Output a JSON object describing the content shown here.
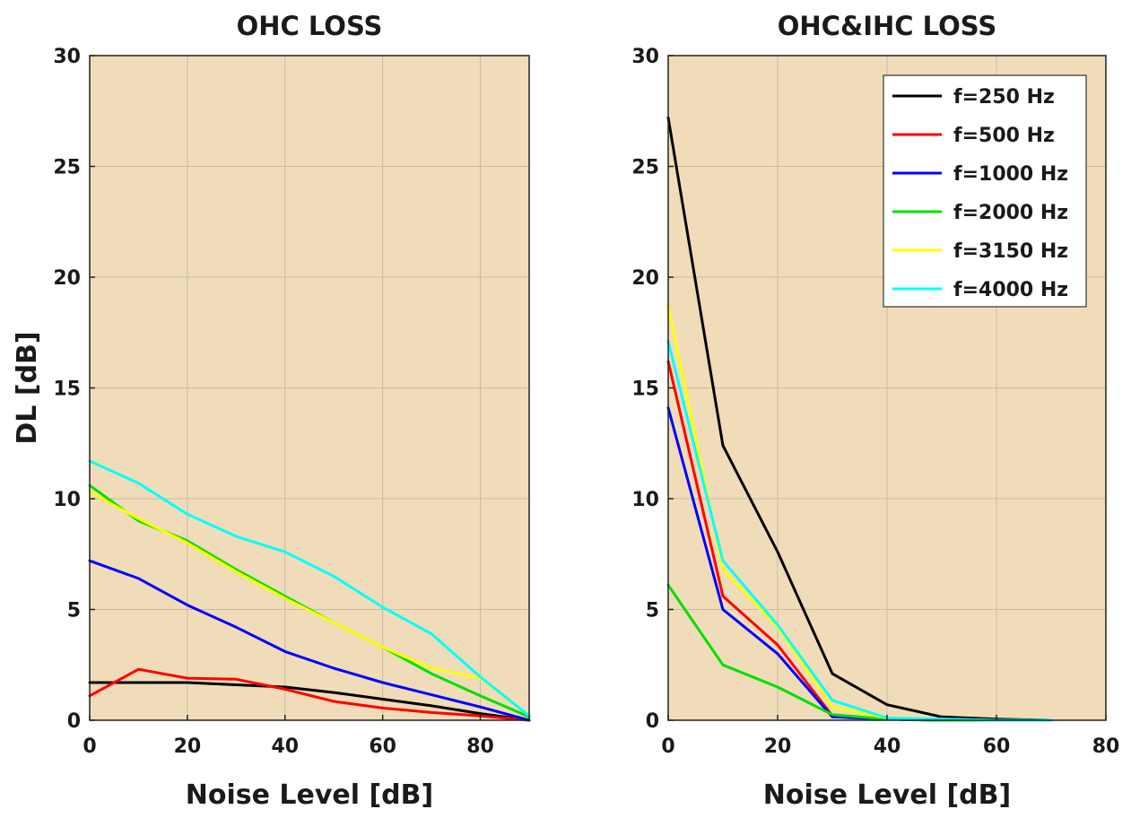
{
  "colors": {
    "plot_background": "#f0dcb8",
    "grid": "#c9bca4",
    "axis": "#222222",
    "series": {
      "f=250 Hz": "#000000",
      "f=500 Hz": "#ff0000",
      "f=1000 Hz": "#0000ff",
      "f=2000 Hz": "#00e000",
      "f=3150 Hz": "#ffff00",
      "f=4000 Hz": "#00ffff"
    }
  },
  "chart_data": [
    {
      "type": "line",
      "title": "OHC LOSS",
      "xlabel": "Noise Level [dB]",
      "ylabel": "DL [dB]",
      "xlim": [
        0,
        90
      ],
      "ylim": [
        0,
        30
      ],
      "xticks": [
        "0",
        "20",
        "40",
        "60",
        "80"
      ],
      "yticks": [
        "0",
        "5",
        "10",
        "15",
        "20",
        "25",
        "30"
      ],
      "grid": true,
      "legend": null,
      "x": [
        0,
        10,
        20,
        30,
        40,
        50,
        60,
        70,
        80,
        90
      ],
      "series": [
        {
          "name": "f=250 Hz",
          "values": [
            1.7,
            1.7,
            1.7,
            1.6,
            1.5,
            1.25,
            0.95,
            0.65,
            0.3,
            0.0
          ]
        },
        {
          "name": "f=500 Hz",
          "values": [
            1.1,
            2.3,
            1.9,
            1.85,
            1.4,
            0.85,
            0.55,
            0.35,
            0.2,
            0.0
          ]
        },
        {
          "name": "f=1000 Hz",
          "values": [
            7.2,
            6.4,
            5.2,
            4.2,
            3.1,
            2.35,
            1.7,
            1.15,
            0.6,
            0.0
          ]
        },
        {
          "name": "f=2000 Hz",
          "values": [
            10.6,
            9.0,
            8.1,
            6.8,
            5.6,
            4.4,
            3.3,
            2.1,
            1.1,
            0.15
          ]
        },
        {
          "name": "f=3150 Hz",
          "values": [
            10.3,
            9.1,
            8.0,
            6.7,
            5.5,
            4.4,
            3.3,
            2.35,
            1.9,
            0.2
          ]
        },
        {
          "name": "f=4000 Hz",
          "values": [
            11.7,
            10.7,
            9.3,
            8.3,
            7.6,
            6.5,
            5.1,
            3.9,
            1.95,
            0.2
          ]
        }
      ]
    },
    {
      "type": "line",
      "title": "OHC&IHC LOSS",
      "xlabel": "Noise Level [dB]",
      "ylabel": "",
      "xlim": [
        0,
        80
      ],
      "ylim": [
        0,
        30
      ],
      "xticks": [
        "0",
        "20",
        "40",
        "60",
        "80"
      ],
      "yticks": [
        "0",
        "5",
        "10",
        "15",
        "20",
        "25",
        "30"
      ],
      "grid": true,
      "legend": "top-right",
      "x": [
        0,
        10,
        20,
        30,
        40,
        50,
        60,
        70
      ],
      "series": [
        {
          "name": "f=250 Hz",
          "values": [
            27.2,
            12.4,
            7.6,
            2.1,
            0.7,
            0.15,
            0.05,
            0.0
          ]
        },
        {
          "name": "f=500 Hz",
          "values": [
            16.2,
            5.6,
            3.4,
            0.2,
            0.05,
            0.0,
            0.0,
            0.0
          ]
        },
        {
          "name": "f=1000 Hz",
          "values": [
            14.1,
            5.0,
            3.0,
            0.15,
            0.05,
            0.0,
            0.0,
            0.0
          ]
        },
        {
          "name": "f=2000 Hz",
          "values": [
            6.1,
            2.5,
            1.5,
            0.25,
            0.05,
            0.0,
            0.0,
            0.0
          ]
        },
        {
          "name": "f=3150 Hz",
          "values": [
            18.7,
            6.8,
            4.2,
            0.6,
            0.1,
            0.05,
            0.0,
            0.0
          ]
        },
        {
          "name": "f=4000 Hz",
          "values": [
            17.1,
            7.2,
            4.3,
            0.9,
            0.1,
            0.05,
            0.0,
            0.0
          ]
        }
      ]
    }
  ]
}
